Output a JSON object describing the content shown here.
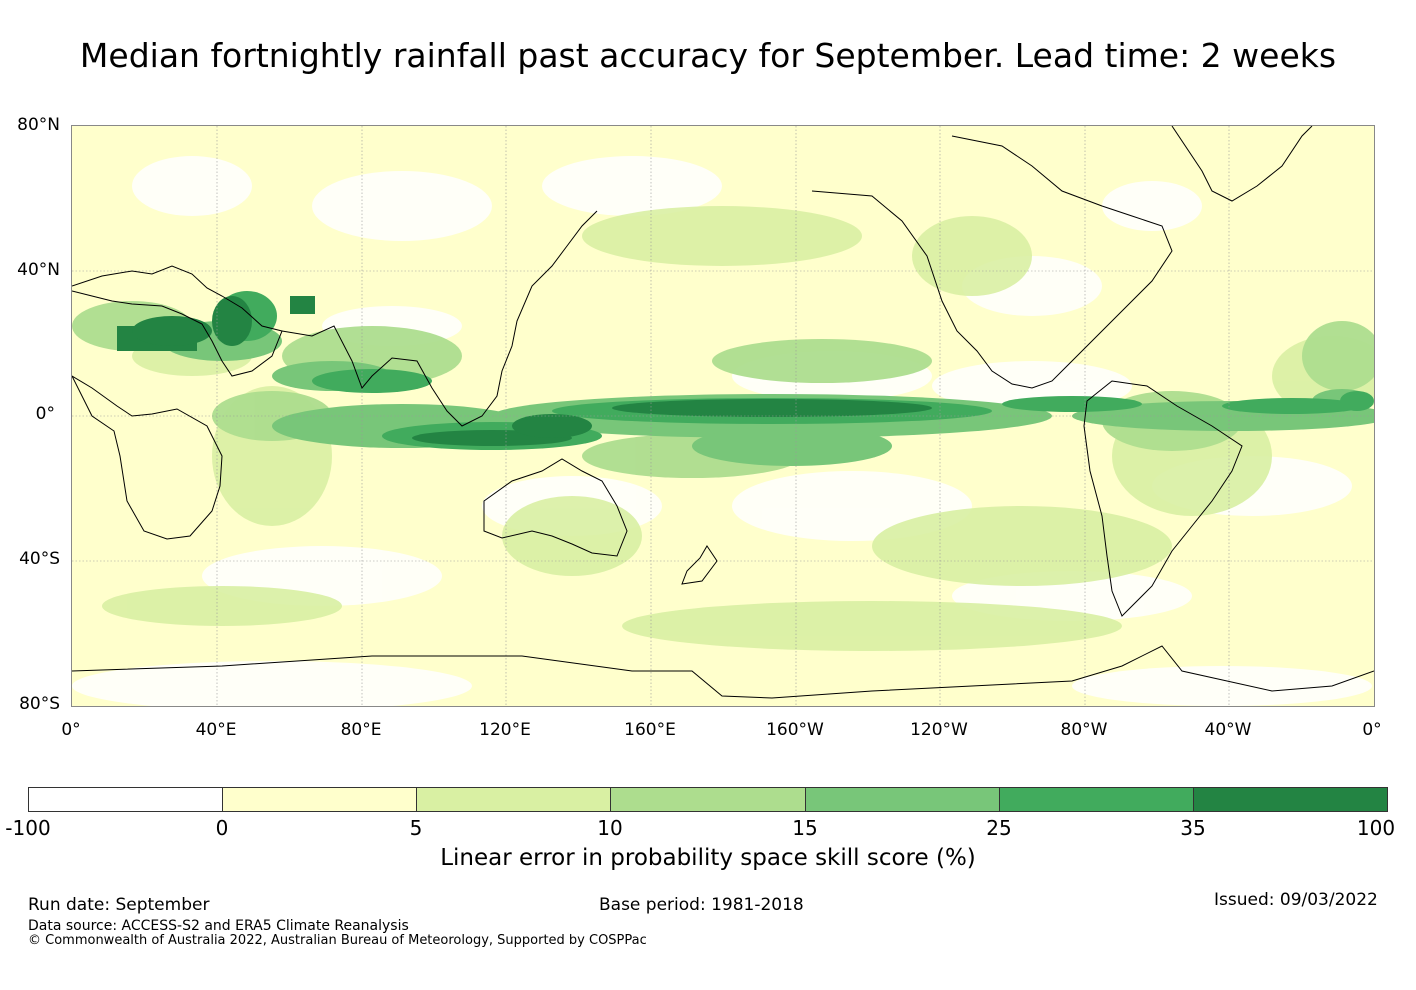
{
  "title": "Median fortnightly rainfall past accuracy for September. Lead time: 2 weeks",
  "map": {
    "lat_labels": [
      "80°N",
      "40°N",
      "0°",
      "40°S",
      "80°S"
    ],
    "lon_labels": [
      "0°",
      "40°E",
      "80°E",
      "120°E",
      "160°E",
      "160°W",
      "120°W",
      "80°W",
      "40°W",
      "0°"
    ],
    "colors": {
      "ocean_base": "#ffffcc",
      "light_green": "#d9f0a3",
      "mid_green": "#addd8e",
      "green": "#78c679",
      "strong_green": "#41ab5d",
      "dark_green": "#238443",
      "coastline": "#000000"
    }
  },
  "colorbar": {
    "ticks": [
      "-100",
      "0",
      "5",
      "10",
      "15",
      "25",
      "35",
      "100"
    ],
    "colors": [
      "#ffffff",
      "#ffffcc",
      "#d9f0a3",
      "#addd8e",
      "#78c679",
      "#41ab5d",
      "#238443"
    ],
    "label": "Linear error in probability space skill score (%)"
  },
  "footer": {
    "run_date": "Run date: September",
    "base_period": "Base period: 1981-2018",
    "issued": "Issued: 09/03/2022",
    "data_source": "Data source: ACCESS-S2 and ERA5 Climate Reanalysis",
    "copyright": "© Commonwealth of Australia 2022, Australian Bureau of Meteorology, Supported by COSPPac"
  }
}
